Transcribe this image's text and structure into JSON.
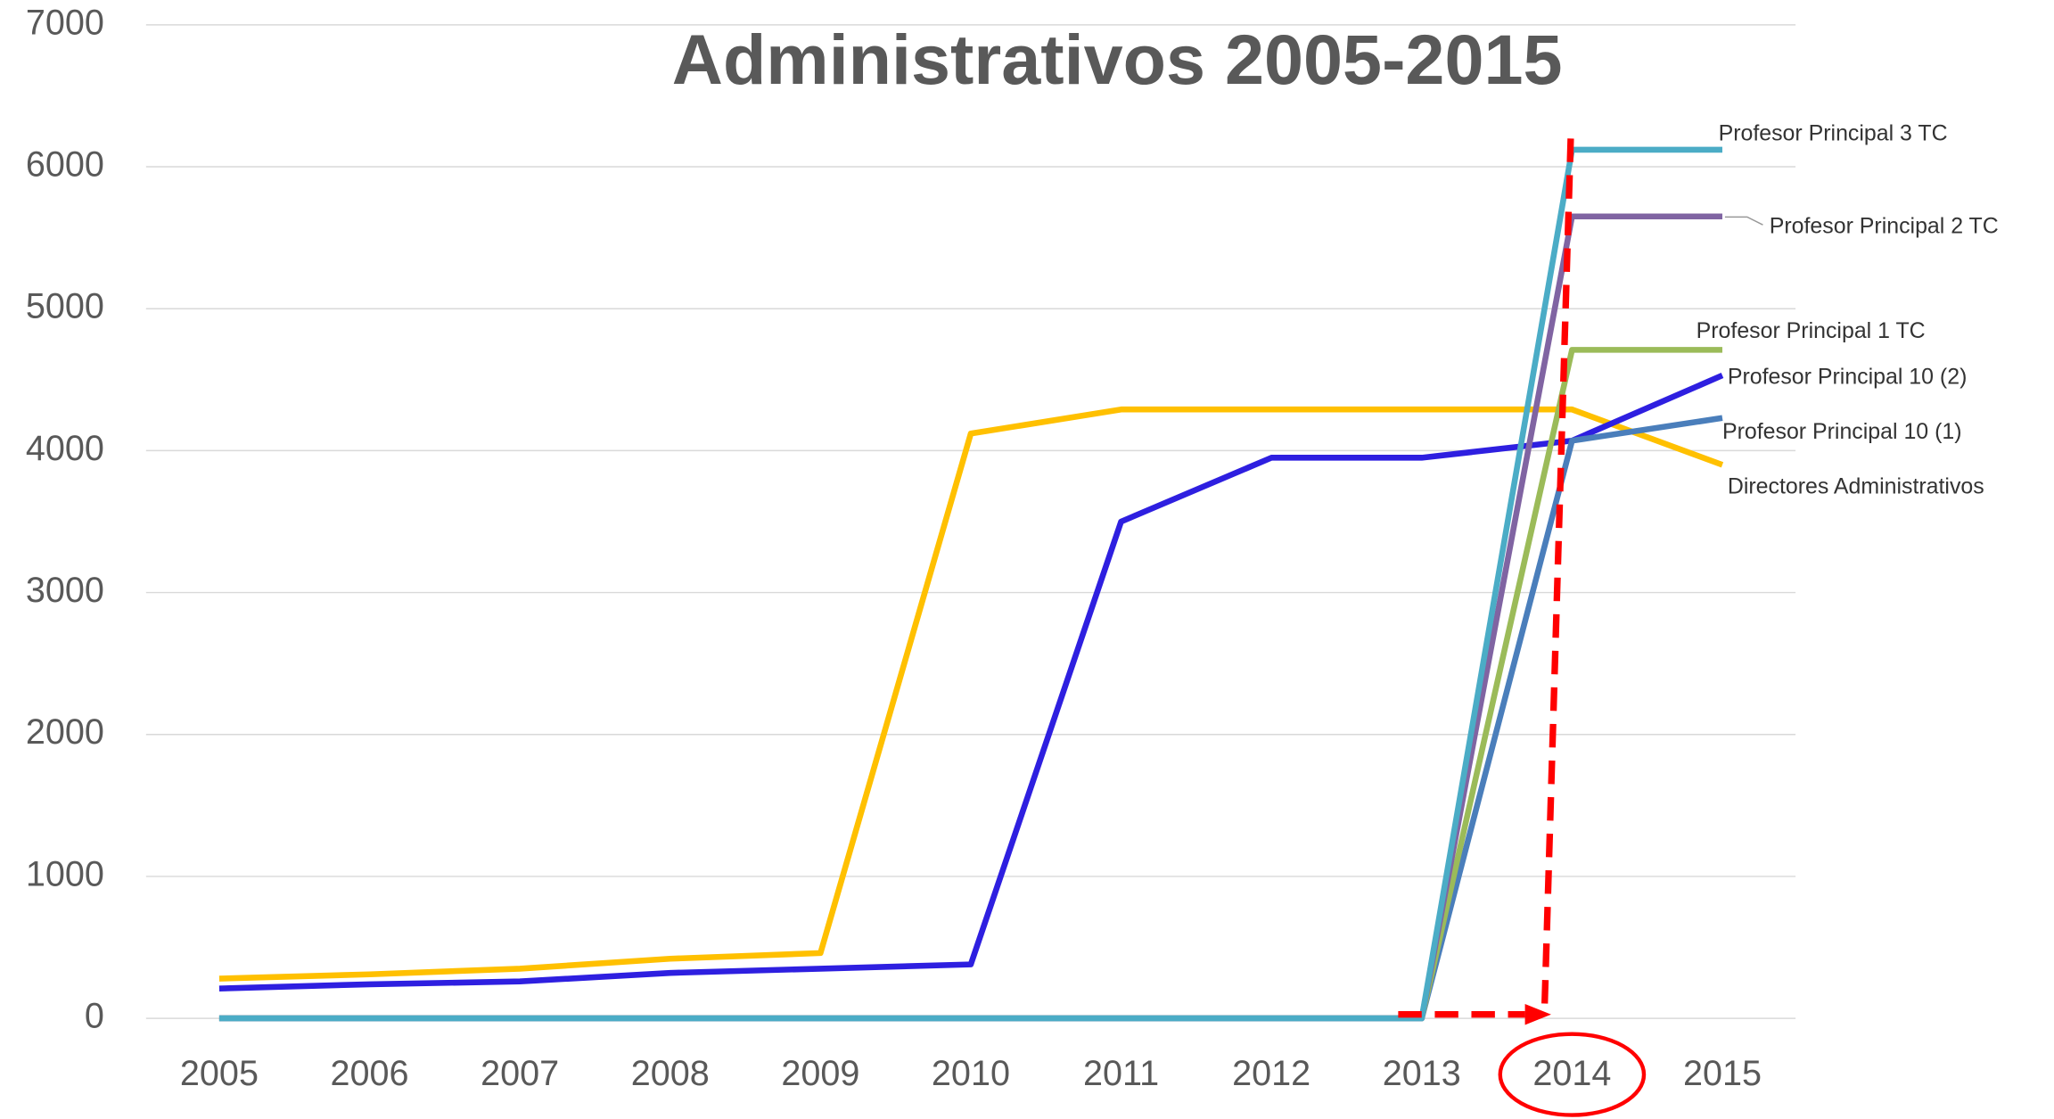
{
  "chart_data": {
    "type": "line",
    "title": "Administrativos 2005-2015",
    "categories": [
      "2005",
      "2006",
      "2007",
      "2008",
      "2009",
      "2010",
      "2011",
      "2012",
      "2013",
      "2014",
      "2015"
    ],
    "series": [
      {
        "name": "Directores Administrativos",
        "color": "#ffc000",
        "values": [
          280,
          310,
          350,
          420,
          460,
          4120,
          4290,
          4290,
          4290,
          4290,
          3900
        ]
      },
      {
        "name": "Profesor Principal 10 (2)",
        "color": "#2e1fe0",
        "values": [
          210,
          240,
          260,
          320,
          350,
          380,
          3500,
          3950,
          3950,
          4070,
          4530
        ]
      },
      {
        "name": "Profesor Principal 10 (1)",
        "color": "#4a7ebb",
        "values": [
          0,
          0,
          0,
          0,
          0,
          0,
          0,
          0,
          0,
          4070,
          4230
        ]
      },
      {
        "name": "Profesor Principal 1 TC",
        "color": "#9bbb59",
        "values": [
          0,
          0,
          0,
          0,
          0,
          0,
          0,
          0,
          0,
          4710,
          4710
        ]
      },
      {
        "name": "Profesor Principal 2 TC",
        "color": "#8064a2",
        "values": [
          0,
          0,
          0,
          0,
          0,
          0,
          0,
          0,
          0,
          5650,
          5650
        ]
      },
      {
        "name": "Profesor Principal 3 TC",
        "color": "#4bacc6",
        "values": [
          0,
          0,
          0,
          0,
          0,
          0,
          0,
          0,
          0,
          6120,
          6120
        ]
      }
    ],
    "ylim": [
      0,
      7000
    ],
    "yticks": [
      0,
      1000,
      2000,
      3000,
      4000,
      5000,
      6000,
      7000
    ],
    "grid": true
  }
}
